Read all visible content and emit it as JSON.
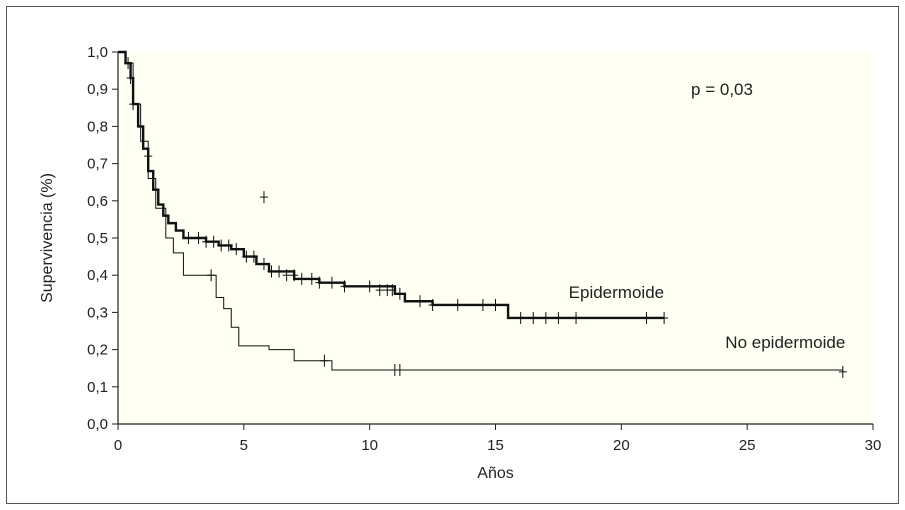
{
  "chart_data": {
    "type": "line",
    "subtype": "kaplan-meier",
    "xlabel": "Años",
    "ylabel": "Supervivencia (%)",
    "xlim": [
      0,
      30
    ],
    "ylim": [
      0,
      1
    ],
    "x_ticks": [
      0,
      5,
      10,
      15,
      20,
      25,
      30
    ],
    "x_tick_labels": [
      "0",
      "5",
      "10",
      "15",
      "20",
      "25",
      "30"
    ],
    "y_ticks": [
      0,
      0.1,
      0.2,
      0.3,
      0.4,
      0.5,
      0.6,
      0.7,
      0.8,
      0.9,
      1.0
    ],
    "y_tick_labels": [
      "0,0",
      "0,1",
      "0,2",
      "0,3",
      "0,4",
      "0,5",
      "0,6",
      "0,7",
      "0,8",
      "0,9",
      "1,0"
    ],
    "grid": false,
    "annotations": [
      {
        "text": "p = 0,03",
        "x": 24,
        "y": 0.9
      },
      {
        "text": "Epidermoide",
        "x": 21.7,
        "y": 0.355
      },
      {
        "text": "No epidermoide",
        "x": 28.9,
        "y": 0.22
      }
    ],
    "series": [
      {
        "name": "Epidermoide",
        "color": "#111111",
        "width": "thick",
        "x": [
          0,
          0.3,
          0.5,
          0.6,
          0.8,
          1.0,
          1.2,
          1.4,
          1.6,
          1.8,
          2.0,
          2.3,
          2.6,
          3.0,
          3.5,
          4.0,
          4.5,
          5.0,
          5.5,
          6.0,
          7.0,
          8.0,
          9.0,
          11.0,
          11.4,
          12.5,
          15.5,
          21.7
        ],
        "y": [
          1.0,
          0.97,
          0.93,
          0.86,
          0.8,
          0.74,
          0.68,
          0.63,
          0.59,
          0.56,
          0.54,
          0.52,
          0.5,
          0.5,
          0.49,
          0.48,
          0.47,
          0.45,
          0.43,
          0.41,
          0.39,
          0.38,
          0.37,
          0.35,
          0.33,
          0.32,
          0.285,
          0.285
        ],
        "censor_x": [
          0.5,
          0.6,
          1.2,
          2.8,
          3.2,
          3.5,
          3.8,
          4.1,
          4.4,
          4.7,
          5.1,
          5.4,
          5.8,
          6.1,
          6.4,
          6.7,
          7.0,
          7.3,
          7.7,
          8.0,
          8.5,
          9.0,
          10.0,
          10.4,
          10.7,
          10.9,
          11.2,
          12.0,
          12.5,
          13.5,
          14.5,
          15.0,
          16.0,
          16.5,
          17.0,
          17.5,
          18.2,
          21.0,
          21.7,
          5.8
        ],
        "censor_y": [
          0.93,
          0.86,
          0.72,
          0.5,
          0.5,
          0.49,
          0.49,
          0.48,
          0.48,
          0.47,
          0.45,
          0.45,
          0.43,
          0.41,
          0.41,
          0.4,
          0.4,
          0.39,
          0.39,
          0.38,
          0.38,
          0.37,
          0.37,
          0.36,
          0.36,
          0.36,
          0.35,
          0.33,
          0.32,
          0.32,
          0.32,
          0.32,
          0.285,
          0.285,
          0.285,
          0.285,
          0.285,
          0.285,
          0.285,
          0.61
        ]
      },
      {
        "name": "No epidermoide",
        "color": "#111111",
        "width": "thin",
        "x": [
          0,
          0.3,
          0.6,
          0.9,
          1.2,
          1.5,
          1.9,
          2.2,
          2.6,
          3.5,
          3.9,
          4.2,
          4.5,
          4.8,
          6.0,
          7.0,
          8.5,
          28.8
        ],
        "y": [
          1.0,
          0.97,
          0.86,
          0.76,
          0.66,
          0.58,
          0.5,
          0.46,
          0.4,
          0.4,
          0.34,
          0.31,
          0.26,
          0.21,
          0.2,
          0.17,
          0.145,
          0.14
        ],
        "censor_x": [
          0.4,
          3.7,
          8.2,
          11.0,
          11.2,
          28.8
        ],
        "censor_y": [
          0.97,
          0.4,
          0.17,
          0.145,
          0.145,
          0.14
        ]
      }
    ]
  }
}
